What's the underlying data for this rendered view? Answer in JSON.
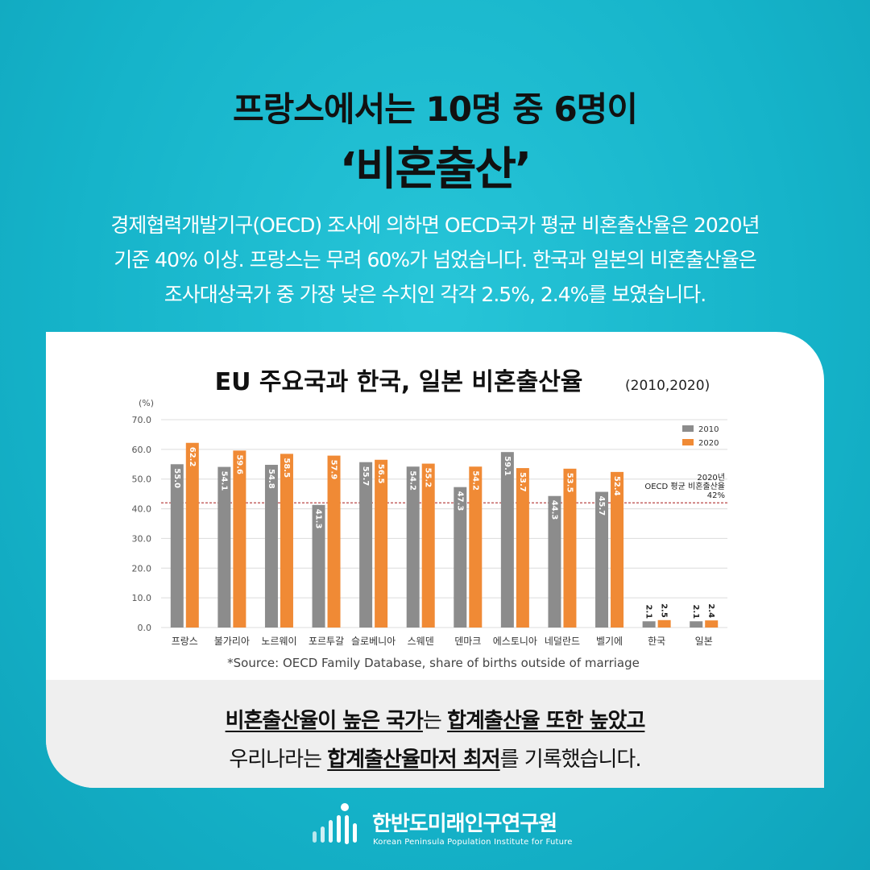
{
  "headline": {
    "line1": "프랑스에서는 10명 중 6명이",
    "line2": "‘비혼출산’"
  },
  "description": {
    "lines": [
      "경제협력개발기구(OECD) 조사에 의하면 OECD국가 평균 비혼출산율은 2020년",
      "기준 40% 이상. 프랑스는 무려 60%가 넘었습니다. 한국과 일본의 비혼출산율은",
      "조사대상국가 중 가장 낮은 수치인 각각 2.5%, 2.4%를 보였습니다."
    ]
  },
  "chart_data": {
    "type": "bar",
    "title": "EU 주요국과 한국, 일본 비혼출산율",
    "subtitle": "(2010,2020)",
    "unit_label": "(%)",
    "ylim": [
      0,
      70
    ],
    "yticks": [
      "70.0",
      "60.0",
      "50.0",
      "40.0",
      "30.0",
      "20.0",
      "10.0",
      "0.0"
    ],
    "grid": true,
    "legend_position": "top-right",
    "categories": [
      "프랑스",
      "불가리아",
      "노르웨이",
      "포르투갈",
      "슬로베니아",
      "스웨덴",
      "덴마크",
      "에스토니아",
      "네덜란드",
      "벨기에",
      "한국",
      "일본"
    ],
    "series": [
      {
        "name": "2010",
        "color": "#8c8c8c",
        "values": [
          55.0,
          54.1,
          54.8,
          41.3,
          55.7,
          54.2,
          47.3,
          59.1,
          44.3,
          45.7,
          2.1,
          2.1
        ]
      },
      {
        "name": "2020",
        "color": "#f08a35",
        "values": [
          62.2,
          59.6,
          58.5,
          57.9,
          56.5,
          55.2,
          54.2,
          53.7,
          53.5,
          52.4,
          2.5,
          2.4
        ]
      }
    ],
    "reference_line": {
      "value": 42,
      "color": "#b03030",
      "label_lines": [
        "2020년",
        "OECD 평균 비혼출산율",
        "42%"
      ]
    },
    "source": "*Source: OECD Family Database, share of births outside of marriage"
  },
  "notes": {
    "line1_a": "비혼출산율이 높은 국가",
    "line1_b": "는 ",
    "line1_c": "합계출산율 또한 높았고",
    "line2_a": "우리나라는 ",
    "line2_b": "합계출산율마저 최저",
    "line2_c": "를 기록했습니다."
  },
  "footer": {
    "org_name": "한반도미래인구연구원",
    "org_english": "Korean Peninsula Population Institute for Future"
  }
}
